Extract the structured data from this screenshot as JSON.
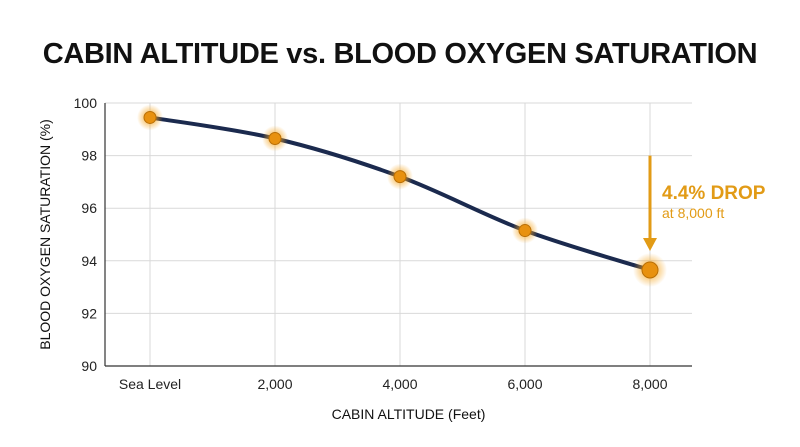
{
  "chart_data": {
    "type": "line",
    "title": "CABIN ALTITUDE vs. BLOOD OXYGEN SATURATION",
    "xlabel": "CABIN ALTITUDE (Feet)",
    "ylabel": "BLOOD OXYGEN SATURATION (%)",
    "categories": [
      "Sea Level",
      "2,000",
      "4,000",
      "6,000",
      "8,000"
    ],
    "x": [
      0,
      2000,
      4000,
      6000,
      8000
    ],
    "values": [
      99.45,
      98.65,
      97.2,
      95.15,
      93.65
    ],
    "ylim": [
      90,
      100
    ],
    "yticks": [
      90,
      92,
      94,
      96,
      98,
      100
    ],
    "grid": true,
    "annotation": {
      "label": "4.4% DROP",
      "sublabel": "at 8,000 ft",
      "arrow_from_y": 98.0,
      "arrow_to_y": 93.65,
      "target_x": 8000
    },
    "colors": {
      "line": "#1b2a4e",
      "marker": "#e8910f",
      "glow": "#f5a623",
      "annotation": "#e29b16",
      "grid": "#d9d9d9",
      "axis": "#333333"
    }
  }
}
